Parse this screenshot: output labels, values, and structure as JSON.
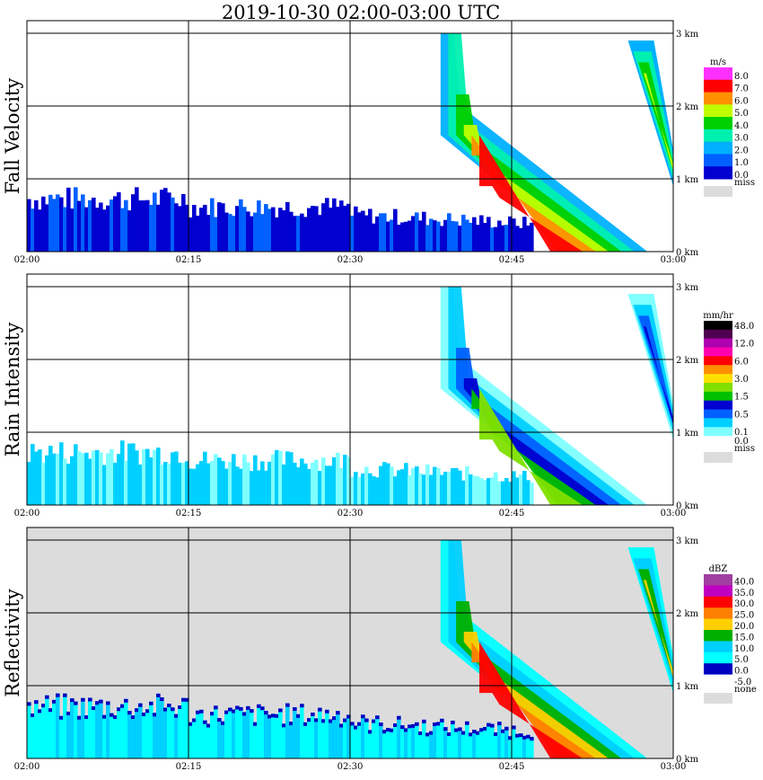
{
  "chart_data": {
    "type": "heatmap",
    "title": "2019-10-30   02:00-03:00 UTC",
    "x_ticks": [
      "02:00",
      "02:15",
      "02:30",
      "02:45",
      "03:00"
    ],
    "y_ticks": [
      "0 km",
      "1 km",
      "2 km",
      "3 km"
    ],
    "xlim": [
      "02:00",
      "03:00"
    ],
    "ylim_km": [
      0,
      3.2
    ],
    "grid": true,
    "legend_placement": "right",
    "panels": [
      {
        "name": "Fall Velocity",
        "unit": "m/s",
        "legend": [
          {
            "label": "8.0",
            "color": "#ff30ff"
          },
          {
            "label": "7.0",
            "color": "#ff0000"
          },
          {
            "label": "6.0",
            "color": "#ff9000"
          },
          {
            "label": "5.0",
            "color": "#c0ff00"
          },
          {
            "label": "4.0",
            "color": "#00d000"
          },
          {
            "label": "3.0",
            "color": "#00f0b0"
          },
          {
            "label": "2.0",
            "color": "#00b0ff"
          },
          {
            "label": "1.0",
            "color": "#0060ff"
          },
          {
            "label": "0.0",
            "color": "#0000d0"
          }
        ],
        "missing": {
          "label": "miss",
          "color": "#dcdcdc"
        },
        "background": "#ffffff"
      },
      {
        "name": "Rain Intensity",
        "unit": "mm/hr",
        "legend": [
          {
            "label": "48.0",
            "color": "#000000"
          },
          {
            "label": "",
            "color": "#500050"
          },
          {
            "label": "12.0",
            "color": "#b000b0"
          },
          {
            "label": "",
            "color": "#ff00b0"
          },
          {
            "label": "6.0",
            "color": "#ff0000"
          },
          {
            "label": "",
            "color": "#ff9000"
          },
          {
            "label": "3.0",
            "color": "#ffe000"
          },
          {
            "label": "",
            "color": "#80e000"
          },
          {
            "label": "1.5",
            "color": "#00c000"
          },
          {
            "label": "",
            "color": "#0000d0"
          },
          {
            "label": "0.5",
            "color": "#0060ff"
          },
          {
            "label": "",
            "color": "#00d0ff"
          },
          {
            "label": "0.1",
            "color": "#80ffff"
          },
          {
            "label": "0.0",
            "color": "#ffffff"
          }
        ],
        "missing": {
          "label": "miss",
          "color": "#dcdcdc"
        },
        "background": "#ffffff"
      },
      {
        "name": "Reflectivity",
        "unit": "dBZ",
        "legend": [
          {
            "label": "40.0",
            "color": "#a040a0"
          },
          {
            "label": "35.0",
            "color": "#c000c0"
          },
          {
            "label": "30.0",
            "color": "#ff0000"
          },
          {
            "label": "25.0",
            "color": "#ff8000"
          },
          {
            "label": "20.0",
            "color": "#ffd000"
          },
          {
            "label": "15.0",
            "color": "#00b000"
          },
          {
            "label": "10.0",
            "color": "#00d0ff"
          },
          {
            "label": "5.0",
            "color": "#00ffff"
          },
          {
            "label": "0.0",
            "color": "#0000c0"
          },
          {
            "label": "-5.0",
            "color": "#ffffff"
          }
        ],
        "missing": {
          "label": "none",
          "color": "#dcdcdc"
        },
        "background": "#dcdcdc"
      }
    ]
  }
}
